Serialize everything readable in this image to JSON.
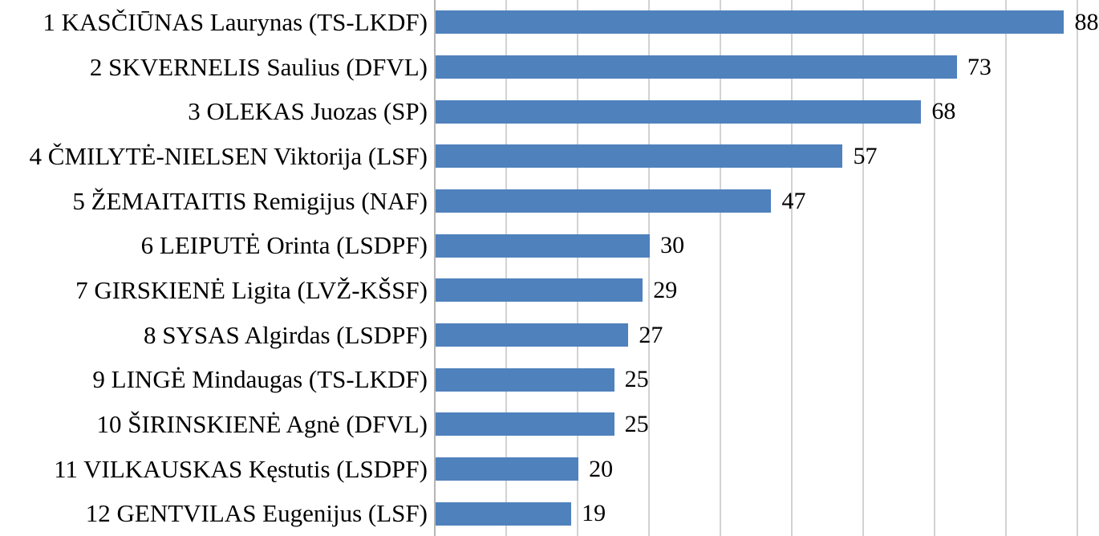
{
  "chart_data": {
    "type": "bar",
    "orientation": "horizontal",
    "title": "",
    "xlabel": "",
    "ylabel": "",
    "categories": [
      "1 KASČIŪNAS Laurynas (TS-LKDF)",
      "2 SKVERNELIS Saulius (DFVL)",
      "3 OLEKAS Juozas (SP)",
      "4 ČMILYTĖ-NIELSEN Viktorija (LSF)",
      "5 ŽEMAITAITIS Remigijus (NAF)",
      "6 LEIPUTĖ Orinta (LSDPF)",
      "7 GIRSKIENĖ Ligita (LVŽ-KŠSF)",
      "8 SYSAS Algirdas (LSDPF)",
      "9 LINGĖ Mindaugas (TS-LKDF)",
      "10 ŠIRINSKIENĖ Agnė (DFVL)",
      "11 VILKAUSKAS Kęstutis (LSDPF)",
      "12 GENTVILAS Eugenijus (LSF)"
    ],
    "values": [
      88,
      73,
      68,
      57,
      47,
      30,
      29,
      27,
      25,
      25,
      20,
      19
    ],
    "data_labels": true,
    "xlim": [
      0,
      93
    ],
    "gridline_ticks": [
      0,
      10,
      20,
      30,
      40,
      50,
      60,
      70,
      80,
      90
    ],
    "grid": true,
    "legend": false,
    "axis_tick_labels_visible": false,
    "colors": {
      "bar": "#4f81bd",
      "gridline": "#d2d2d2",
      "axis_line": "#b5b5b5",
      "text": "#000000",
      "background": "#ffffff"
    }
  }
}
